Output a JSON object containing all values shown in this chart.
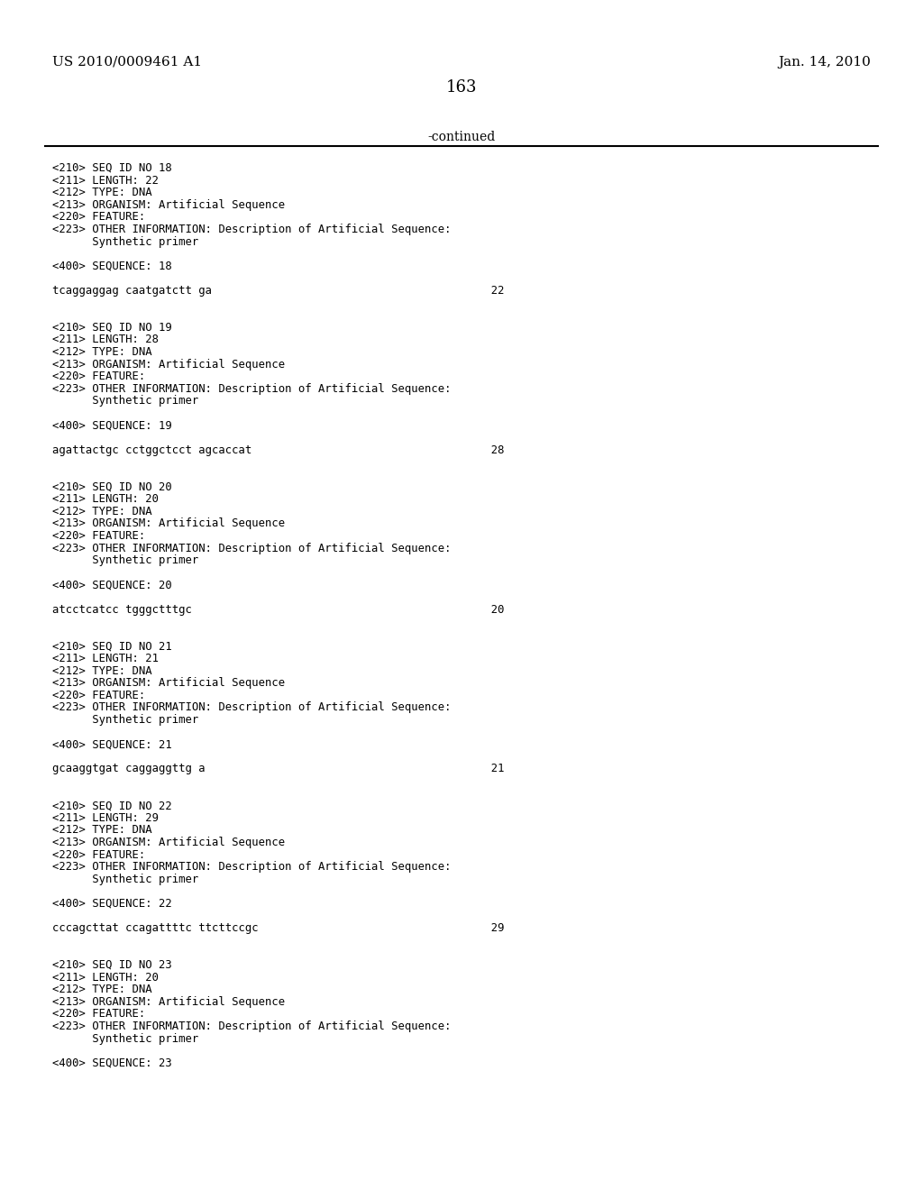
{
  "header_left": "US 2010/0009461 A1",
  "header_right": "Jan. 14, 2010",
  "page_number": "163",
  "continued_label": "-continued",
  "background_color": "#ffffff",
  "text_color": "#000000",
  "header_fontsize": 11,
  "body_fontsize": 8.8,
  "page_num_fontsize": 13,
  "continued_fontsize": 10,
  "content_lines": [
    "<210> SEQ ID NO 18",
    "<211> LENGTH: 22",
    "<212> TYPE: DNA",
    "<213> ORGANISM: Artificial Sequence",
    "<220> FEATURE:",
    "<223> OTHER INFORMATION: Description of Artificial Sequence:",
    "      Synthetic primer",
    "",
    "<400> SEQUENCE: 18",
    "",
    "tcaggaggag caatgatctt ga                                          22",
    "",
    "",
    "<210> SEQ ID NO 19",
    "<211> LENGTH: 28",
    "<212> TYPE: DNA",
    "<213> ORGANISM: Artificial Sequence",
    "<220> FEATURE:",
    "<223> OTHER INFORMATION: Description of Artificial Sequence:",
    "      Synthetic primer",
    "",
    "<400> SEQUENCE: 19",
    "",
    "agattactgc cctggctcct agcaccat                                    28",
    "",
    "",
    "<210> SEQ ID NO 20",
    "<211> LENGTH: 20",
    "<212> TYPE: DNA",
    "<213> ORGANISM: Artificial Sequence",
    "<220> FEATURE:",
    "<223> OTHER INFORMATION: Description of Artificial Sequence:",
    "      Synthetic primer",
    "",
    "<400> SEQUENCE: 20",
    "",
    "atcctcatcc tgggctttgc                                             20",
    "",
    "",
    "<210> SEQ ID NO 21",
    "<211> LENGTH: 21",
    "<212> TYPE: DNA",
    "<213> ORGANISM: Artificial Sequence",
    "<220> FEATURE:",
    "<223> OTHER INFORMATION: Description of Artificial Sequence:",
    "      Synthetic primer",
    "",
    "<400> SEQUENCE: 21",
    "",
    "gcaaggtgat caggaggttg a                                           21",
    "",
    "",
    "<210> SEQ ID NO 22",
    "<211> LENGTH: 29",
    "<212> TYPE: DNA",
    "<213> ORGANISM: Artificial Sequence",
    "<220> FEATURE:",
    "<223> OTHER INFORMATION: Description of Artificial Sequence:",
    "      Synthetic primer",
    "",
    "<400> SEQUENCE: 22",
    "",
    "cccagcttat ccagattttc ttcttccgc                                   29",
    "",
    "",
    "<210> SEQ ID NO 23",
    "<211> LENGTH: 20",
    "<212> TYPE: DNA",
    "<213> ORGANISM: Artificial Sequence",
    "<220> FEATURE:",
    "<223> OTHER INFORMATION: Description of Artificial Sequence:",
    "      Synthetic primer",
    "",
    "<400> SEQUENCE: 23"
  ]
}
